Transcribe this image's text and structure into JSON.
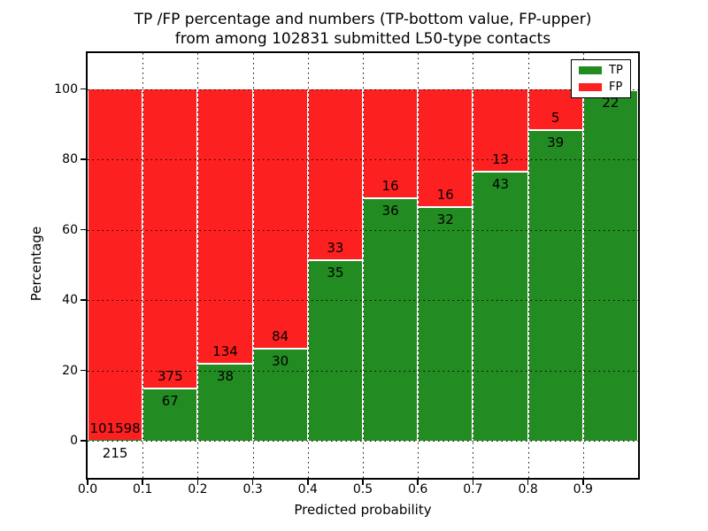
{
  "figure": {
    "title_line1": "TP /FP percentage and numbers (TP-bottom value, FP-upper)",
    "title_line2": "from among 102831 submitted L50-type contacts",
    "xlabel": "Predicted probability",
    "ylabel": "Percentage"
  },
  "legend": {
    "items": [
      {
        "label": "TP",
        "color": "#228b22"
      },
      {
        "label": "FP",
        "color": "#fd2020"
      }
    ]
  },
  "chart_data": {
    "type": "bar",
    "stacked": true,
    "normalized_to_percent": true,
    "title": "TP /FP percentage and numbers (TP-bottom value, FP-upper)\nfrom among 102831 submitted L50-type contacts",
    "xlabel": "Predicted probability",
    "ylabel": "Percentage",
    "bins": [
      "0.0-0.1",
      "0.1-0.2",
      "0.2-0.3",
      "0.3-0.4",
      "0.4-0.5",
      "0.5-0.6",
      "0.6-0.7",
      "0.7-0.8",
      "0.8-0.9",
      "0.9-1.0"
    ],
    "series": [
      {
        "name": "TP",
        "color": "#228b22",
        "values": [
          215,
          67,
          38,
          30,
          35,
          36,
          32,
          43,
          39,
          22
        ]
      },
      {
        "name": "FP",
        "color": "#fd2020",
        "values": [
          101598,
          375,
          134,
          84,
          33,
          16,
          16,
          13,
          5,
          0
        ]
      }
    ],
    "tp_percent_of_bin": [
      0.21,
      15.16,
      22.09,
      26.32,
      51.47,
      69.23,
      66.67,
      76.79,
      88.64,
      100.0
    ],
    "x_tick_labels": [
      "0.0",
      "0.1",
      "0.2",
      "0.3",
      "0.4",
      "0.5",
      "0.6",
      "0.7",
      "0.8",
      "0.9"
    ],
    "y_tick_values": [
      0,
      20,
      40,
      60,
      80,
      100
    ],
    "xlim": [
      0.0,
      1.0
    ],
    "ylim": [
      -10.5,
      110.5
    ],
    "grid": "on, dotted black, both axes",
    "legend_position": "upper right",
    "label_convention": "TP count below segment boundary, FP count above segment boundary"
  }
}
